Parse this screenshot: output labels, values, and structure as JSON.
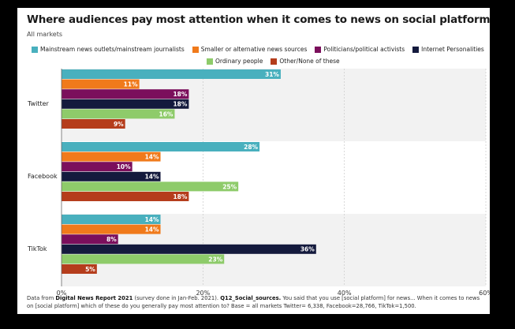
{
  "title": "Where audiences pay most attention when it comes to news on social platforms",
  "subtitle": "All markets",
  "colors": {
    "mainstream": "#49b0be",
    "alternative": "#f07a1b",
    "politicians": "#7b0f5c",
    "personalities": "#141a3d",
    "ordinary": "#8ecb6a",
    "other": "#b53d1c",
    "band": "#f2f2f2"
  },
  "chart_data": {
    "type": "bar",
    "orientation": "horizontal",
    "categories": [
      "Twitter",
      "Facebook",
      "TikTok"
    ],
    "series": [
      {
        "name": "Mainstream news outlets/mainstream journalists",
        "color": "#49b0be",
        "values": [
          31,
          28,
          14
        ]
      },
      {
        "name": "Smaller or alternative news sources",
        "color": "#f07a1b",
        "values": [
          11,
          14,
          14
        ]
      },
      {
        "name": "Politicians/political activists",
        "color": "#7b0f5c",
        "values": [
          18,
          10,
          8
        ]
      },
      {
        "name": "Internet Personalities",
        "color": "#141a3d",
        "values": [
          18,
          14,
          36
        ]
      },
      {
        "name": "Ordinary people",
        "color": "#8ecb6a",
        "values": [
          16,
          25,
          23
        ]
      },
      {
        "name": "Other/None of these",
        "color": "#b53d1c",
        "values": [
          9,
          18,
          5
        ]
      }
    ],
    "xlim": [
      0,
      60
    ],
    "xticks": [
      "0%",
      "20%",
      "40%",
      "60%"
    ],
    "value_suffix": "%",
    "legend_position": "top",
    "grid": true
  },
  "footer": {
    "prefix": "Data from ",
    "report": "Digital News Report 2021",
    "mid": " (survey done in Jan-Feb. 2021). ",
    "question_id": "Q12_Social_sources.",
    "question": " You said that you use [social platform] for news... When it comes to news on [social platform] which of these do you generally pay most attention to? Base = all markets Twitter= 6,338, Facebook=28,766, TikTok=1,500."
  }
}
